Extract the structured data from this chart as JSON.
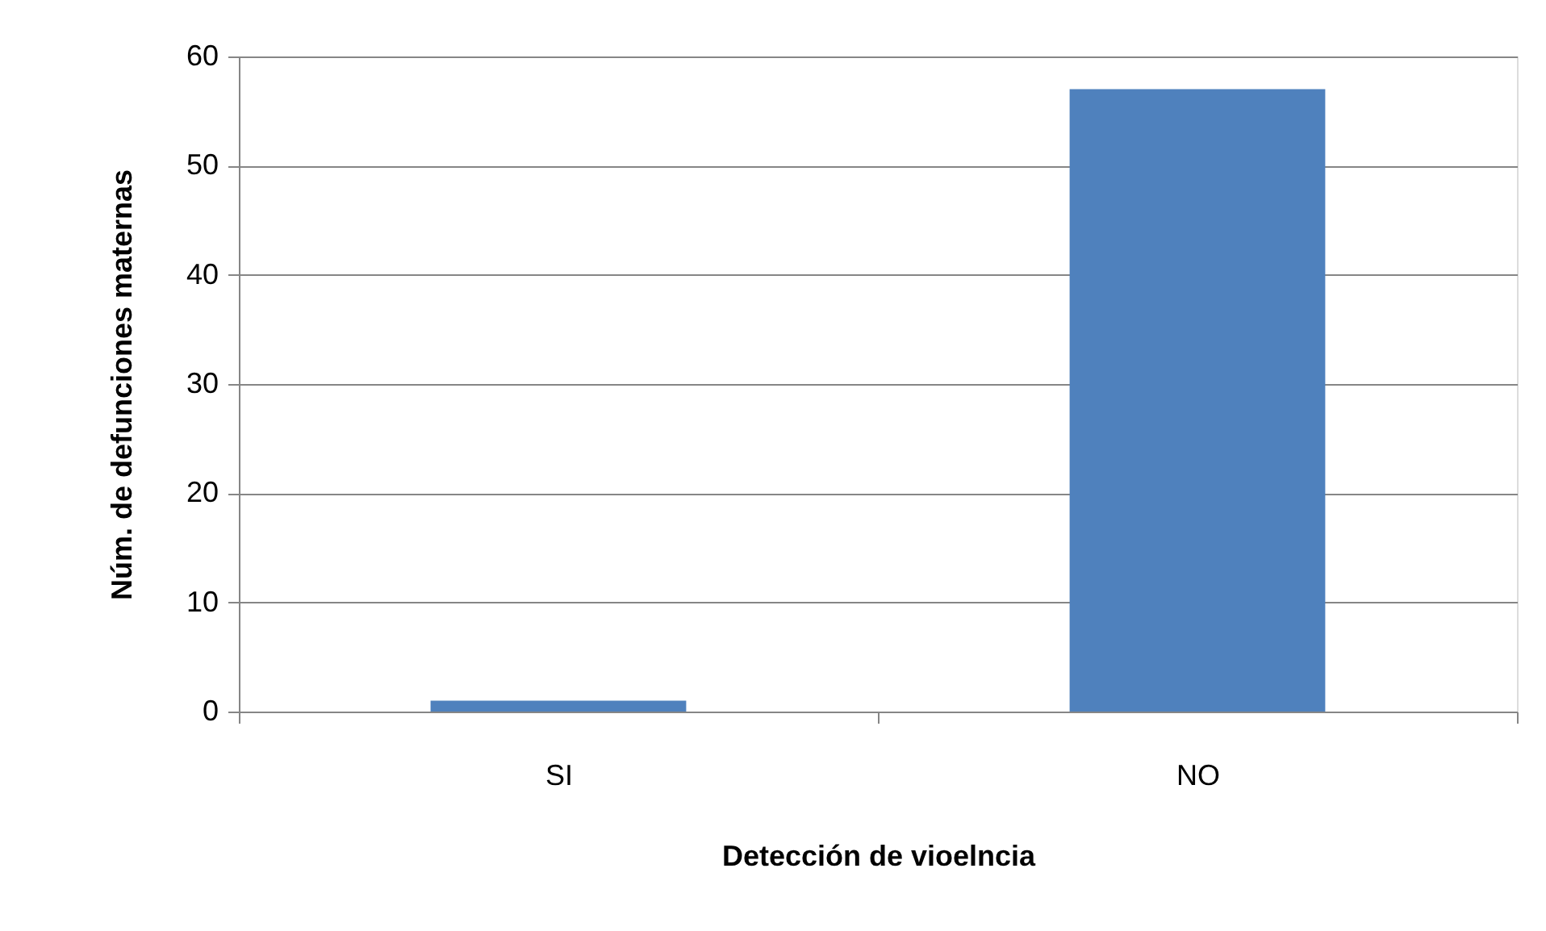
{
  "chart_data": {
    "type": "bar",
    "xlabel": "Detección de vioelncia",
    "ylabel": "Núm. de defunciones maternas",
    "categories": [
      "SI",
      "NO"
    ],
    "values": [
      1,
      57
    ],
    "color": "#4f81bd",
    "ylim": [
      0,
      60
    ],
    "yticks": [
      0,
      10,
      20,
      30,
      40,
      50,
      60
    ],
    "grid": "y"
  }
}
